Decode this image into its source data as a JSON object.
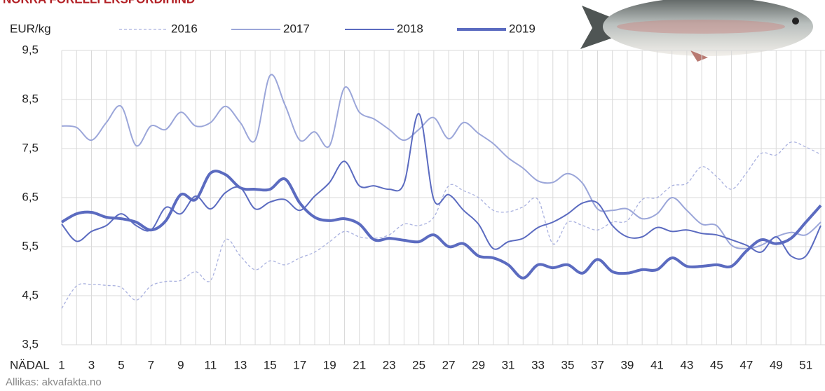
{
  "chart_data": {
    "type": "line",
    "title": "NORRA FORELLI EKSPORDIHIND",
    "y_label": "EUR/kg",
    "x_label": "NÄDAL",
    "source": "Allikas: akvafakta.no",
    "x": [
      1,
      2,
      3,
      4,
      5,
      6,
      7,
      8,
      9,
      10,
      11,
      12,
      13,
      14,
      15,
      16,
      17,
      18,
      19,
      20,
      21,
      22,
      23,
      24,
      25,
      26,
      27,
      28,
      29,
      30,
      31,
      32,
      33,
      34,
      35,
      36,
      37,
      38,
      39,
      40,
      41,
      42,
      43,
      44,
      45,
      46,
      47,
      48,
      49,
      50,
      51,
      52
    ],
    "xlim": [
      1,
      52
    ],
    "xticks": [
      1,
      3,
      5,
      7,
      9,
      11,
      13,
      15,
      17,
      19,
      21,
      23,
      25,
      27,
      29,
      31,
      33,
      35,
      37,
      39,
      41,
      43,
      45,
      47,
      49,
      51
    ],
    "ylim": [
      3.5,
      9.5
    ],
    "yticks": [
      {
        "value": 3.5,
        "label": "3,5"
      },
      {
        "value": 4.5,
        "label": "4,5"
      },
      {
        "value": 5.5,
        "label": "5,5"
      },
      {
        "value": 6.5,
        "label": "6,5"
      },
      {
        "value": 7.5,
        "label": "7,5"
      },
      {
        "value": 8.5,
        "label": "8,5"
      },
      {
        "value": 9.5,
        "label": "9,5"
      }
    ],
    "grid": true,
    "legend": "top",
    "series": [
      {
        "name": "2016",
        "color": "#a9b1df",
        "dashed": true,
        "line_width": 1.3,
        "values": [
          4.24,
          4.7,
          4.73,
          4.71,
          4.67,
          4.41,
          4.7,
          4.79,
          4.81,
          4.99,
          4.81,
          5.64,
          5.31,
          5.03,
          5.21,
          5.13,
          5.27,
          5.39,
          5.6,
          5.81,
          5.7,
          5.67,
          5.74,
          5.96,
          5.93,
          6.1,
          6.74,
          6.64,
          6.5,
          6.24,
          6.21,
          6.31,
          6.46,
          5.56,
          6.0,
          5.93,
          5.84,
          6.0,
          6.03,
          6.46,
          6.5,
          6.74,
          6.79,
          7.13,
          6.93,
          6.67,
          7.0,
          7.4,
          7.37,
          7.63,
          7.53,
          7.38
        ]
      },
      {
        "name": "2017",
        "color": "#9ba6d9",
        "dashed": false,
        "line_width": 2,
        "values": [
          7.96,
          7.93,
          7.67,
          8.03,
          8.36,
          7.56,
          7.96,
          7.89,
          8.24,
          7.96,
          8.03,
          8.36,
          8.03,
          7.67,
          8.99,
          8.39,
          7.67,
          7.84,
          7.56,
          8.74,
          8.24,
          8.1,
          7.89,
          7.67,
          7.89,
          8.13,
          7.7,
          8.03,
          7.81,
          7.6,
          7.31,
          7.1,
          6.84,
          6.81,
          6.99,
          6.79,
          6.27,
          6.24,
          6.27,
          6.07,
          6.17,
          6.5,
          6.24,
          5.96,
          5.93,
          5.53,
          5.46,
          5.53,
          5.7,
          5.79,
          5.74,
          6.0
        ]
      },
      {
        "name": "2018",
        "color": "#5b6bc0",
        "dashed": false,
        "line_width": 2,
        "values": [
          5.96,
          5.61,
          5.81,
          5.93,
          6.17,
          5.93,
          5.84,
          6.3,
          6.17,
          6.53,
          6.27,
          6.6,
          6.7,
          6.27,
          6.41,
          6.46,
          6.24,
          6.53,
          6.81,
          7.24,
          6.74,
          6.74,
          6.67,
          6.79,
          8.21,
          6.46,
          6.56,
          6.24,
          5.96,
          5.46,
          5.6,
          5.67,
          5.89,
          6.0,
          6.17,
          6.39,
          6.39,
          5.93,
          5.7,
          5.7,
          5.89,
          5.81,
          5.84,
          5.77,
          5.74,
          5.64,
          5.53,
          5.39,
          5.7,
          5.31,
          5.31,
          5.93
        ]
      },
      {
        "name": "2019",
        "color": "#5b6bc0",
        "dashed": false,
        "line_width": 4,
        "values": [
          6.0,
          6.17,
          6.2,
          6.1,
          6.07,
          6.0,
          5.84,
          6.03,
          6.56,
          6.46,
          7.0,
          6.97,
          6.7,
          6.67,
          6.67,
          6.88,
          6.39,
          6.1,
          6.03,
          6.07,
          5.96,
          5.64,
          5.67,
          5.63,
          5.6,
          5.74,
          5.5,
          5.56,
          5.31,
          5.27,
          5.13,
          4.86,
          5.13,
          5.07,
          5.13,
          4.96,
          5.24,
          4.99,
          4.96,
          5.03,
          5.03,
          5.27,
          5.1,
          5.1,
          5.13,
          5.1,
          5.41,
          5.64,
          5.56,
          5.67,
          6.0,
          6.34
        ]
      }
    ]
  }
}
